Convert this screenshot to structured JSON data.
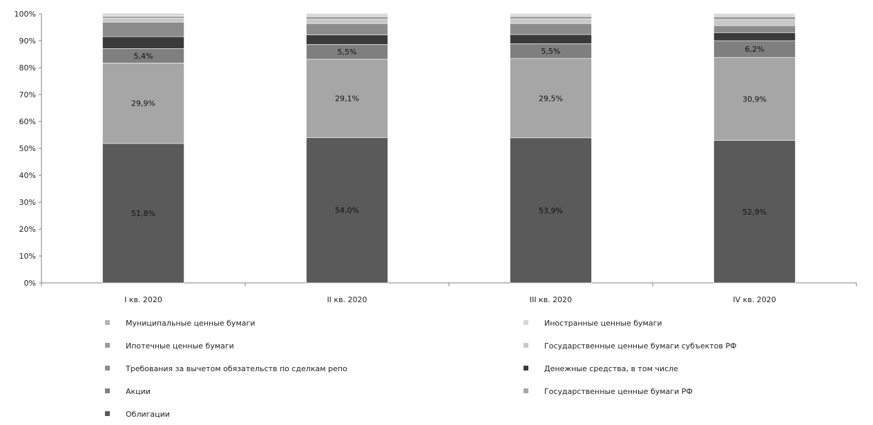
{
  "chart_data": {
    "type": "bar",
    "stacked": true,
    "percent": true,
    "categories": [
      "I кв. 2020",
      "II кв. 2020",
      "III кв. 2020",
      "IV кв. 2020"
    ],
    "ylim": [
      0,
      100
    ],
    "yticks": [
      "0%",
      "10%",
      "20%",
      "30%",
      "40%",
      "50%",
      "60%",
      "70%",
      "80%",
      "90%",
      "100%"
    ],
    "grid": false,
    "legend_position": "bottom",
    "series": [
      {
        "name": "Облигации",
        "color": "#5a5a5a",
        "values": [
          51.8,
          54.0,
          53.9,
          52.9
        ],
        "labels": [
          "51,8%",
          "54,0%",
          "53,9%",
          "52,9%"
        ],
        "label_color": "#111111"
      },
      {
        "name": "Государственные ценные бумаги РФ",
        "color": "#a6a6a6",
        "values": [
          29.9,
          29.1,
          29.5,
          30.9
        ],
        "labels": [
          "29,9%",
          "29,1%",
          "29,5%",
          "30,9%"
        ],
        "label_color": "#111111"
      },
      {
        "name": "Акции",
        "color": "#7f7f7f",
        "values": [
          5.4,
          5.5,
          5.5,
          6.2
        ],
        "labels": [
          "5,4%",
          "5,5%",
          "5,5%",
          "6,2%"
        ],
        "label_color": "#111111"
      },
      {
        "name": "Денежные средства, в том числе",
        "color": "#3a3a3a",
        "values": [
          4.4,
          3.6,
          3.4,
          3.0
        ]
      },
      {
        "name": "Требования за вычетом обязательств по сделкам репо",
        "color": "#8c8c8c",
        "values": [
          5.4,
          4.2,
          4.1,
          2.6
        ]
      },
      {
        "name": "Государственные ценные бумаги субъектов РФ",
        "color": "#c8c8c8",
        "values": [
          1.5,
          1.6,
          1.7,
          2.3
        ]
      },
      {
        "name": "Ипотечные ценные бумаги",
        "color": "#9a9a9a",
        "values": [
          0.7,
          0.9,
          0.9,
          1.0
        ]
      },
      {
        "name": "Иностранные ценные бумаги",
        "color": "#d6d6d6",
        "values": [
          0.6,
          0.7,
          0.6,
          0.7
        ]
      },
      {
        "name": "Муниципальные ценные бумаги",
        "color": "#b4b4b4",
        "values": [
          0.4,
          0.4,
          0.4,
          0.4
        ]
      }
    ],
    "legend": [
      {
        "name": "Муниципальные ценные бумаги",
        "color": "#b4b4b4"
      },
      {
        "name": "Иностранные ценные бумаги",
        "color": "#d6d6d6"
      },
      {
        "name": "Ипотечные ценные бумаги",
        "color": "#9a9a9a"
      },
      {
        "name": "Государственные ценные бумаги субъектов РФ",
        "color": "#c8c8c8"
      },
      {
        "name": "Требования за вычетом обязательств по сделкам репо",
        "color": "#8c8c8c"
      },
      {
        "name": "Денежные средства, в том числе",
        "color": "#3a3a3a"
      },
      {
        "name": "Акции",
        "color": "#7f7f7f"
      },
      {
        "name": "Государственные ценные бумаги РФ",
        "color": "#a6a6a6"
      },
      {
        "name": "Облигации",
        "color": "#5a5a5a"
      }
    ]
  }
}
